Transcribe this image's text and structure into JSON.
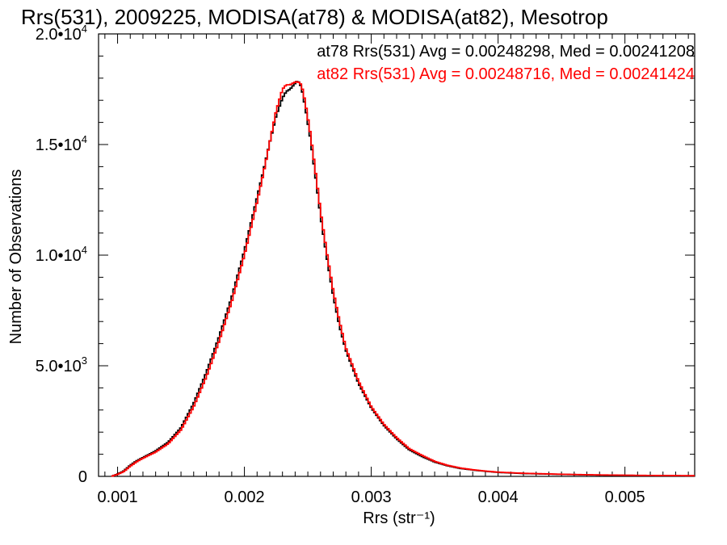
{
  "chart_data": {
    "type": "line",
    "title": "Rrs(531), 2009225, MODISA(at78) & MODISA(at82), Mesotrop",
    "xlabel": "Rrs (str⁻¹)",
    "ylabel": "Number of Observations",
    "xlim": [
      0.00085,
      0.00555
    ],
    "ylim": [
      0,
      20000
    ],
    "x_ticks": [
      {
        "value": 0.001,
        "label": "0.001"
      },
      {
        "value": 0.002,
        "label": "0.002"
      },
      {
        "value": 0.003,
        "label": "0.003"
      },
      {
        "value": 0.004,
        "label": "0.004"
      },
      {
        "value": 0.005,
        "label": "0.005"
      }
    ],
    "y_ticks": [
      {
        "value": 0,
        "mantissa": "0",
        "exp": ""
      },
      {
        "value": 5000,
        "mantissa": "5.0•10",
        "exp": "3"
      },
      {
        "value": 10000,
        "mantissa": "1.0•10",
        "exp": "4"
      },
      {
        "value": 15000,
        "mantissa": "1.5•10",
        "exp": "4"
      },
      {
        "value": 20000,
        "mantissa": "2.0•10",
        "exp": "4"
      }
    ],
    "grid": false,
    "style": "step",
    "series": [
      {
        "name": "at78",
        "color": "#000000",
        "annotation": "at78 Rrs(531) Avg = 0.00248298, Med = 0.00241208",
        "x": [
          0.00095,
          0.001,
          0.00105,
          0.0011,
          0.00115,
          0.0012,
          0.0013,
          0.0014,
          0.0015,
          0.0016,
          0.0017,
          0.0018,
          0.0019,
          0.002,
          0.0021,
          0.00215,
          0.0022,
          0.00225,
          0.0023,
          0.00233,
          0.00236,
          0.00239,
          0.00242,
          0.00245,
          0.00248,
          0.00252,
          0.00256,
          0.0026,
          0.00265,
          0.0027,
          0.00275,
          0.0028,
          0.0029,
          0.003,
          0.0031,
          0.0032,
          0.0033,
          0.0034,
          0.0035,
          0.0036,
          0.0037,
          0.0038,
          0.0039,
          0.004,
          0.0042,
          0.0045,
          0.0048,
          0.0051,
          0.00555
        ],
        "y": [
          0,
          100,
          250,
          500,
          700,
          850,
          1150,
          1550,
          2200,
          3300,
          4700,
          6300,
          8100,
          10200,
          12600,
          13800,
          15100,
          16300,
          17100,
          17400,
          17500,
          17700,
          17900,
          17600,
          16700,
          15300,
          13600,
          11800,
          9900,
          8200,
          6800,
          5700,
          4200,
          3100,
          2300,
          1700,
          1200,
          900,
          650,
          480,
          360,
          290,
          230,
          180,
          130,
          90,
          60,
          40,
          25
        ]
      },
      {
        "name": "at82",
        "color": "#ff0000",
        "annotation": "at82 Rrs(531) Avg = 0.00248716, Med = 0.00241424",
        "x": [
          0.00095,
          0.001,
          0.00105,
          0.0011,
          0.00115,
          0.0012,
          0.0013,
          0.0014,
          0.0015,
          0.0016,
          0.0017,
          0.0018,
          0.0019,
          0.002,
          0.0021,
          0.00215,
          0.0022,
          0.00225,
          0.0023,
          0.00233,
          0.00236,
          0.00239,
          0.00242,
          0.00245,
          0.00248,
          0.00252,
          0.00256,
          0.0026,
          0.00265,
          0.0027,
          0.00275,
          0.0028,
          0.0029,
          0.003,
          0.0031,
          0.0032,
          0.0033,
          0.0034,
          0.0035,
          0.0036,
          0.0037,
          0.0038,
          0.0039,
          0.004,
          0.0042,
          0.0045,
          0.0048,
          0.0051,
          0.00555
        ],
        "y": [
          0,
          90,
          220,
          460,
          660,
          820,
          1100,
          1480,
          2100,
          3150,
          4500,
          6100,
          7900,
          10000,
          12400,
          13700,
          15100,
          16500,
          17500,
          17700,
          17700,
          17800,
          17850,
          17700,
          16900,
          15500,
          13800,
          12000,
          10100,
          8400,
          7000,
          5800,
          4300,
          3150,
          2350,
          1750,
          1250,
          950,
          680,
          500,
          380,
          300,
          240,
          190,
          140,
          95,
          65,
          45,
          28
        ]
      }
    ]
  }
}
